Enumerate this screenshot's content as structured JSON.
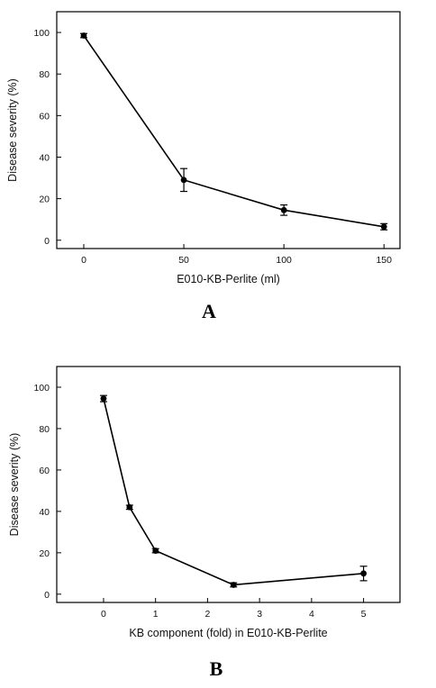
{
  "chart_data": [
    {
      "type": "line",
      "panel_label": "A",
      "xlabel": "E010-KB-Perlite (ml)",
      "ylabel": "Disease severity (%)",
      "x": [
        0,
        50,
        100,
        150
      ],
      "y": [
        98.5,
        29,
        14.5,
        6.5
      ],
      "error": [
        1,
        5.5,
        2.5,
        1.5
      ],
      "x_ticks": [
        "0",
        "50",
        "100",
        "150"
      ],
      "x_tick_values": [
        0,
        50,
        100,
        150
      ],
      "y_ticks": [
        "0",
        "20",
        "40",
        "60",
        "80",
        "100"
      ],
      "y_tick_values": [
        0,
        20,
        40,
        60,
        80,
        100
      ],
      "xlim": [
        -13.5,
        158
      ],
      "ylim": [
        -4,
        110
      ],
      "grid": false,
      "line_color": "#000000"
    },
    {
      "type": "line",
      "panel_label": "B",
      "xlabel": "KB component (fold) in E010-KB-Perlite",
      "ylabel": "Disease severity (%)",
      "x": [
        0,
        0.5,
        1,
        2.5,
        5
      ],
      "y": [
        94.5,
        42,
        21,
        4.5,
        10
      ],
      "error": [
        1.5,
        1,
        1,
        1,
        3.5
      ],
      "x_ticks": [
        "0",
        "1",
        "2",
        "3",
        "4",
        "5"
      ],
      "x_tick_values": [
        0,
        1,
        2,
        3,
        4,
        5
      ],
      "y_ticks": [
        "0",
        "20",
        "40",
        "60",
        "80",
        "100"
      ],
      "y_tick_values": [
        0,
        20,
        40,
        60,
        80,
        100
      ],
      "xlim": [
        -0.9,
        5.7
      ],
      "ylim": [
        -4,
        110
      ],
      "grid": false,
      "line_color": "#000000"
    }
  ]
}
